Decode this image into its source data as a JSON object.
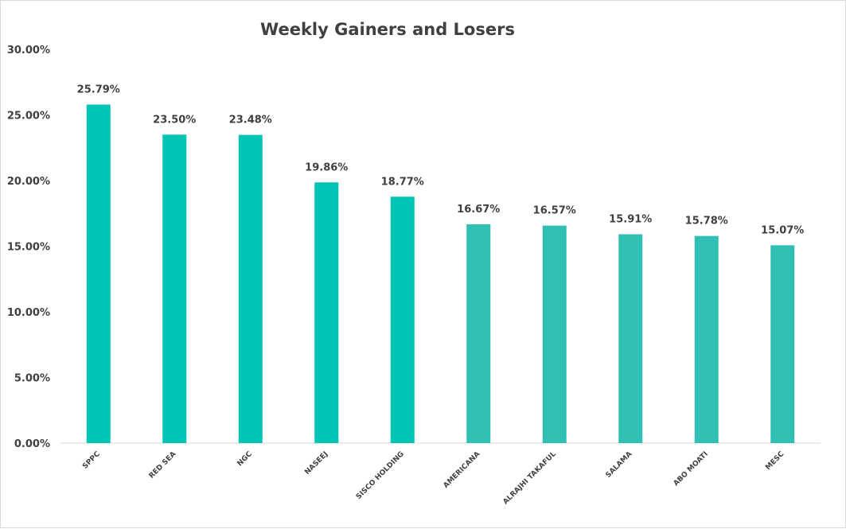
{
  "chart_data": {
    "type": "bar",
    "title": "Weekly Gainers and Losers",
    "xlabel": "",
    "ylabel": "",
    "categories": [
      "SPPC",
      "RED SEA",
      "NGC",
      "NASEEJ",
      "SISCO HOLDING",
      "AMERICANA",
      "ALRAJHI TAKAFUL",
      "SALAMA",
      "ABO MOATI",
      "MESC"
    ],
    "values": [
      25.79,
      23.5,
      23.48,
      19.86,
      18.77,
      16.67,
      16.57,
      15.91,
      15.78,
      15.07
    ],
    "data_labels": [
      "25.79%",
      "23.50%",
      "23.48%",
      "19.86%",
      "18.77%",
      "16.67%",
      "16.57%",
      "15.91%",
      "15.78%",
      "15.07%"
    ],
    "ylim": [
      0,
      30
    ],
    "yticks": [
      0,
      5,
      10,
      15,
      20,
      25,
      30
    ],
    "ytick_labels": [
      "0.00%",
      "5.00%",
      "10.00%",
      "15.00%",
      "20.00%",
      "25.00%",
      "30.00%"
    ],
    "bar_colors": [
      "#00c4b4",
      "#00c4b4",
      "#00c4b4",
      "#00c4b4",
      "#00c4b4",
      "#2fc0b3",
      "#2fc0b3",
      "#2fc0b3",
      "#2fc0b3",
      "#2fc0b3"
    ],
    "grid": false,
    "legend": "none"
  }
}
